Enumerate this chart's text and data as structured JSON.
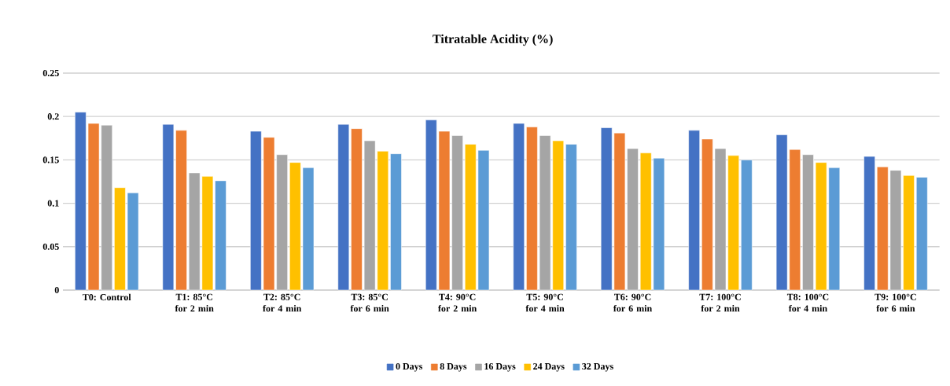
{
  "chart_data": {
    "type": "bar",
    "title": "Titratable Acidity (%)",
    "categories": [
      "T0: Control",
      "T1: 85°C for 2 min",
      "T2: 85°C for 4 min",
      "T3: 85°C for 6 min",
      "T4: 90°C for 2 min",
      "T5: 90°C for 4 min",
      "T6: 90°C for 6 min",
      "T7: 100°C for 2 min",
      "T8: 100°C for 4 min",
      "T9: 100°C for 6 min"
    ],
    "series": [
      {
        "name": "0 Days",
        "color": "#4472c4",
        "values": [
          0.205,
          0.191,
          0.183,
          0.191,
          0.196,
          0.192,
          0.187,
          0.184,
          0.179,
          0.154
        ]
      },
      {
        "name": "8 Days",
        "color": "#ed7d31",
        "values": [
          0.192,
          0.184,
          0.176,
          0.186,
          0.183,
          0.188,
          0.181,
          0.174,
          0.162,
          0.142
        ]
      },
      {
        "name": "16 Days",
        "color": "#a5a5a5",
        "values": [
          0.19,
          0.135,
          0.156,
          0.172,
          0.178,
          0.178,
          0.163,
          0.163,
          0.156,
          0.138
        ]
      },
      {
        "name": "24 Days",
        "color": "#ffc000",
        "values": [
          0.118,
          0.131,
          0.147,
          0.16,
          0.168,
          0.172,
          0.158,
          0.155,
          0.147,
          0.132
        ]
      },
      {
        "name": "32 Days",
        "color": "#5b9bd5",
        "values": [
          0.112,
          0.126,
          0.141,
          0.157,
          0.161,
          0.168,
          0.152,
          0.15,
          0.141,
          0.13
        ]
      }
    ],
    "ylim": [
      0,
      0.25
    ],
    "yticks": [
      0,
      0.05,
      0.1,
      0.15,
      0.2,
      0.25
    ],
    "grid": "y",
    "legend": "bottom"
  }
}
